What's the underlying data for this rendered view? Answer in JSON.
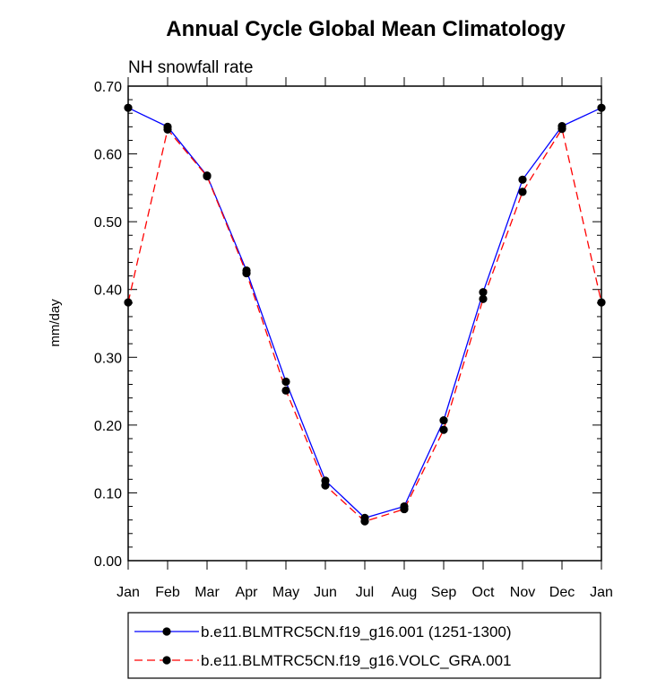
{
  "chart_data": {
    "type": "line",
    "title": "Annual Cycle Global Mean Climatology",
    "subtitle": "NH snowfall rate",
    "xlabel": "",
    "ylabel": "mm/day",
    "ylim": [
      0.0,
      0.7
    ],
    "yticks": [
      "0.00",
      "0.10",
      "0.20",
      "0.30",
      "0.40",
      "0.50",
      "0.60",
      "0.70"
    ],
    "categories": [
      "Jan",
      "Feb",
      "Mar",
      "Apr",
      "May",
      "Jun",
      "Jul",
      "Aug",
      "Sep",
      "Oct",
      "Nov",
      "Dec",
      "Jan"
    ],
    "series": [
      {
        "name": "b.e11.BLMTRC5CN.f19_g16.001 (1251-1300)",
        "color": "#0000ff",
        "dash": "solid",
        "values": [
          0.668,
          0.64,
          0.568,
          0.428,
          0.264,
          0.118,
          0.063,
          0.08,
          0.207,
          0.396,
          0.562,
          0.641,
          0.668
        ]
      },
      {
        "name": "b.e11.BLMTRC5CN.f19_g16.VOLC_GRA.001",
        "color": "#ff0000",
        "dash": "dashed",
        "values": [
          0.381,
          0.636,
          0.567,
          0.424,
          0.251,
          0.111,
          0.058,
          0.076,
          0.193,
          0.386,
          0.544,
          0.637,
          0.381
        ]
      }
    ]
  }
}
